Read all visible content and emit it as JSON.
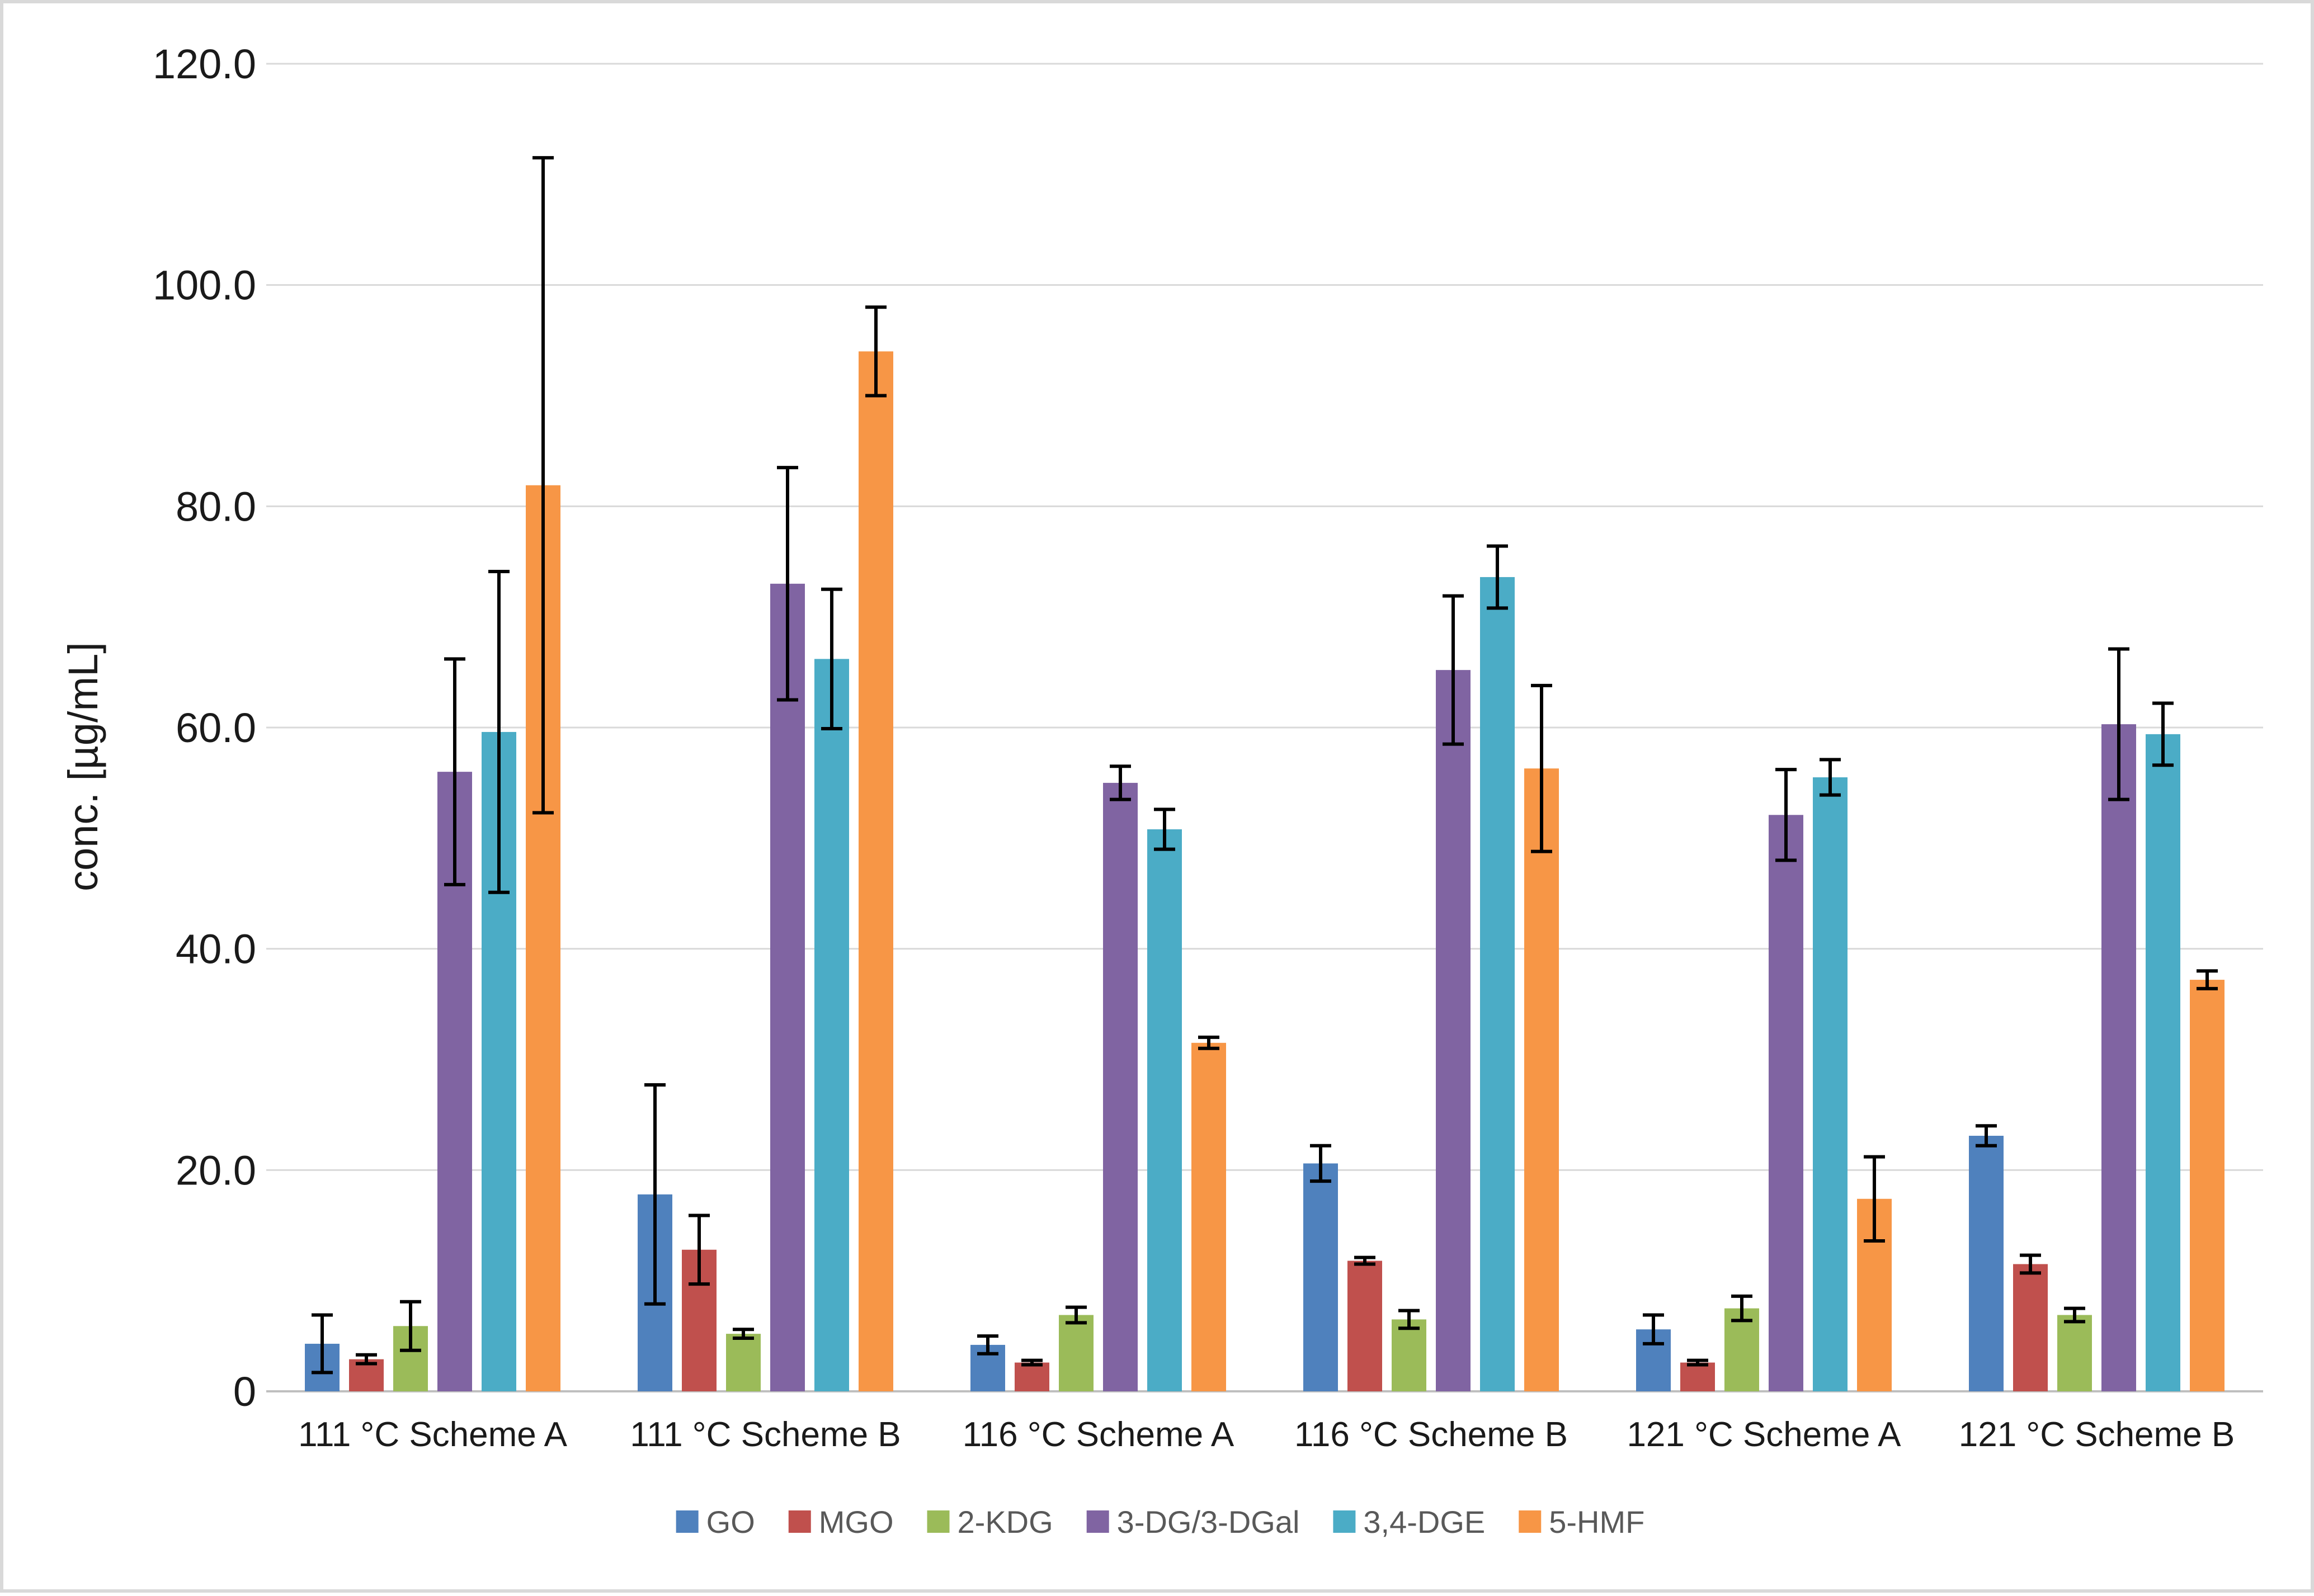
{
  "chart_data": {
    "type": "bar",
    "title": "",
    "xlabel": "",
    "ylabel": "conc. [µg/mL]",
    "ylim": [
      0,
      120
    ],
    "yticks": [
      0,
      20,
      40,
      60,
      80,
      100,
      120
    ],
    "ytick_labels": [
      "0",
      "20.0",
      "40.0",
      "60.0",
      "80.0",
      "100.0",
      "120.0"
    ],
    "grid": true,
    "legend_position": "bottom",
    "categories": [
      "111 °C Scheme A",
      "111 °C Scheme B",
      "116 °C Scheme A",
      "116 °C Scheme B",
      "121 °C Scheme A",
      "121 °C Scheme B"
    ],
    "series": [
      {
        "name": "GO",
        "color": "#4f81bd",
        "values": [
          4.3,
          17.8,
          4.2,
          20.6,
          5.6,
          23.1
        ],
        "errors": [
          2.6,
          9.9,
          0.8,
          1.6,
          1.3,
          0.9
        ]
      },
      {
        "name": "MGO",
        "color": "#c0504d",
        "values": [
          2.9,
          12.8,
          2.6,
          11.8,
          2.6,
          11.5
        ],
        "errors": [
          0.4,
          3.1,
          0.2,
          0.3,
          0.2,
          0.8
        ]
      },
      {
        "name": "2-KDG",
        "color": "#9bbb59",
        "values": [
          5.9,
          5.2,
          6.9,
          6.5,
          7.5,
          6.9
        ],
        "errors": [
          2.2,
          0.4,
          0.7,
          0.8,
          1.1,
          0.6
        ]
      },
      {
        "name": "3-DG/3-DGal",
        "color": "#8064a2",
        "values": [
          56.0,
          73.0,
          55.0,
          65.2,
          52.1,
          60.3
        ],
        "errors": [
          10.2,
          10.5,
          1.5,
          6.7,
          4.1,
          6.8
        ]
      },
      {
        "name": "3,4-DGE",
        "color": "#4bacc6",
        "values": [
          59.6,
          66.2,
          50.8,
          73.6,
          55.5,
          59.4
        ],
        "errors": [
          14.5,
          6.3,
          1.8,
          2.8,
          1.6,
          2.8
        ]
      },
      {
        "name": "5-HMF",
        "color": "#f79646",
        "values": [
          81.9,
          94.0,
          31.5,
          56.3,
          17.4,
          37.2
        ],
        "errors": [
          29.6,
          4.0,
          0.5,
          7.5,
          3.8,
          0.8
        ]
      }
    ]
  }
}
